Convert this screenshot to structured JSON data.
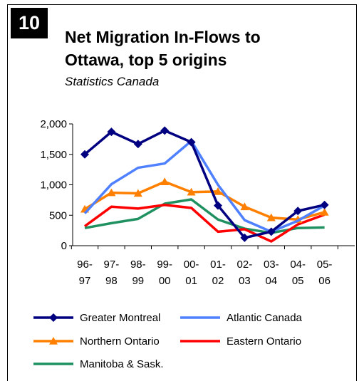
{
  "badge": "10",
  "title_line1": "Net Migration In-Flows to",
  "title_line2": "Ottawa, top 5 origins",
  "subtitle": "Statistics Canada",
  "chart_data": {
    "type": "line",
    "title": "Net Migration In-Flows to Ottawa, top 5 origins",
    "subtitle": "Statistics Canada",
    "categories": [
      [
        "96-",
        "97"
      ],
      [
        "97-",
        "98"
      ],
      [
        "98-",
        "99"
      ],
      [
        "99-",
        "00"
      ],
      [
        "00-",
        "01"
      ],
      [
        "01-",
        "02"
      ],
      [
        "02-",
        "03"
      ],
      [
        "03-",
        "04"
      ],
      [
        "04-",
        "05"
      ],
      [
        "05-",
        "06"
      ]
    ],
    "ylim": [
      0,
      2000
    ],
    "yticks": [
      0,
      500,
      1000,
      1500,
      2000
    ],
    "ytick_labels": [
      "0",
      "500",
      "1,000",
      "1,500",
      "2,000"
    ],
    "grid": false,
    "legend_placement": "bottom",
    "series": [
      {
        "name": "Greater Montreal",
        "color": "#000080",
        "marker": "diamond",
        "values": [
          1500,
          1870,
          1670,
          1890,
          1700,
          660,
          130,
          230,
          570,
          670
        ]
      },
      {
        "name": "Atlantic Canada",
        "color": "#4f81ff",
        "marker": "none",
        "values": [
          530,
          1010,
          1280,
          1350,
          1720,
          1000,
          420,
          230,
          410,
          660
        ]
      },
      {
        "name": "Northern Ontario",
        "color": "#ff8000",
        "marker": "triangle",
        "values": [
          600,
          870,
          860,
          1050,
          880,
          890,
          640,
          460,
          430,
          550
        ]
      },
      {
        "name": "Eastern Ontario",
        "color": "#ff0000",
        "marker": "none",
        "values": [
          320,
          640,
          610,
          670,
          620,
          230,
          270,
          70,
          350,
          510
        ]
      },
      {
        "name": "Manitoba & Sask.",
        "color": "#1f9060",
        "marker": "none",
        "values": [
          290,
          370,
          440,
          690,
          760,
          430,
          280,
          210,
          290,
          300
        ]
      }
    ]
  }
}
